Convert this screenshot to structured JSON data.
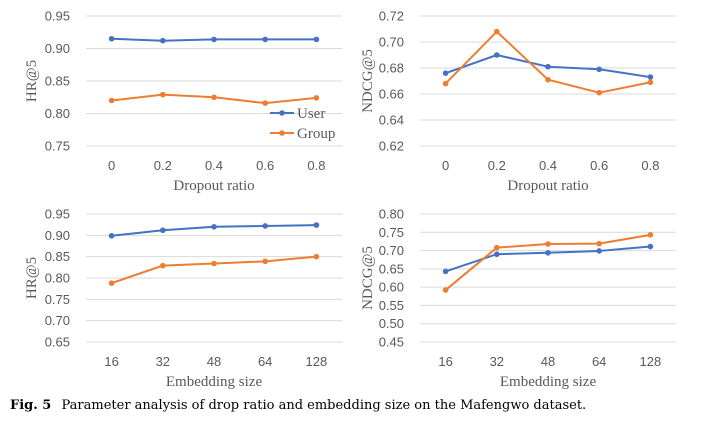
{
  "caption": {
    "label": "Fig. 5",
    "text": "Parameter analysis of drop ratio and embedding size on the Mafengwo dataset."
  },
  "colors": {
    "user": "#4472C4",
    "group": "#ED7D31",
    "grid": "#d9d9d9",
    "text": "#595959"
  },
  "chart_data": [
    {
      "type": "line",
      "categories": [
        "0",
        "0.2",
        "0.4",
        "0.6",
        "0.8"
      ],
      "xlabel": "Dropout ratio",
      "ylabel": "HR@5",
      "ylim": [
        0.75,
        0.95
      ],
      "yticks": [
        "0.75",
        "0.80",
        "0.85",
        "0.90",
        "0.95"
      ],
      "grid": true,
      "legend": "right",
      "series": [
        {
          "name": "User",
          "values": [
            0.915,
            0.912,
            0.914,
            0.914,
            0.914
          ]
        },
        {
          "name": "Group",
          "values": [
            0.82,
            0.829,
            0.825,
            0.816,
            0.824
          ]
        }
      ]
    },
    {
      "type": "line",
      "categories": [
        "0",
        "0.2",
        "0.4",
        "0.6",
        "0.8"
      ],
      "xlabel": "Dropout ratio",
      "ylabel": "NDCG@5",
      "ylim": [
        0.62,
        0.72
      ],
      "yticks": [
        "0.62",
        "0.64",
        "0.66",
        "0.68",
        "0.70",
        "0.72"
      ],
      "grid": true,
      "series": [
        {
          "name": "User",
          "values": [
            0.676,
            0.69,
            0.681,
            0.679,
            0.673
          ]
        },
        {
          "name": "Group",
          "values": [
            0.668,
            0.708,
            0.671,
            0.661,
            0.669
          ]
        }
      ]
    },
    {
      "type": "line",
      "categories": [
        "16",
        "32",
        "48",
        "64",
        "128"
      ],
      "xlabel": "Embedding size",
      "ylabel": "HR@5",
      "ylim": [
        0.65,
        0.95
      ],
      "yticks": [
        "0.65",
        "0.70",
        "0.75",
        "0.80",
        "0.85",
        "0.90",
        "0.95"
      ],
      "grid": true,
      "series": [
        {
          "name": "User",
          "values": [
            0.899,
            0.912,
            0.92,
            0.922,
            0.924
          ]
        },
        {
          "name": "Group",
          "values": [
            0.788,
            0.829,
            0.834,
            0.839,
            0.85
          ]
        }
      ]
    },
    {
      "type": "line",
      "categories": [
        "16",
        "32",
        "48",
        "64",
        "128"
      ],
      "xlabel": "Embedding size",
      "ylabel": "NDCG@5",
      "ylim": [
        0.45,
        0.8
      ],
      "yticks": [
        "0.45",
        "0.50",
        "0.55",
        "0.60",
        "0.65",
        "0.70",
        "0.75",
        "0.80"
      ],
      "grid": true,
      "series": [
        {
          "name": "User",
          "values": [
            0.643,
            0.69,
            0.694,
            0.699,
            0.711
          ]
        },
        {
          "name": "Group",
          "values": [
            0.592,
            0.708,
            0.718,
            0.719,
            0.743
          ]
        }
      ]
    }
  ]
}
